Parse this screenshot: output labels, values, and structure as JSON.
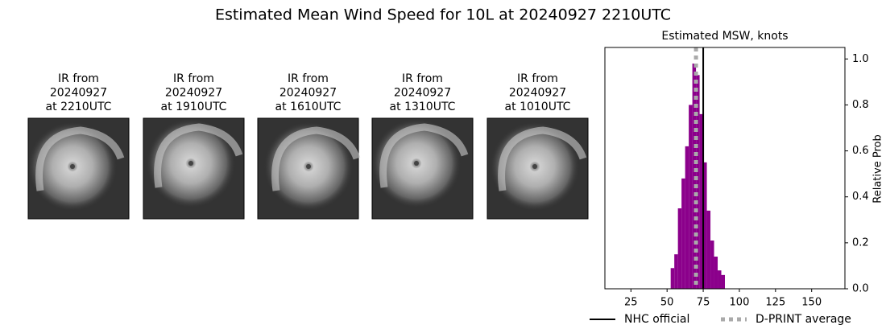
{
  "title": "Estimated Mean Wind Speed for 10L at 20240927 2210UTC",
  "panels": [
    {
      "title_lines": [
        "IR from",
        "20240927",
        "at 2210UTC"
      ]
    },
    {
      "title_lines": [
        "IR from",
        "20240927",
        "at 1910UTC"
      ]
    },
    {
      "title_lines": [
        "IR from",
        "20240927",
        "at 1610UTC"
      ]
    },
    {
      "title_lines": [
        "IR from",
        "20240927",
        "at 1310UTC"
      ]
    },
    {
      "title_lines": [
        "IR from",
        "20240927",
        "at 1010UTC"
      ]
    }
  ],
  "chart_data": {
    "type": "histogram",
    "title": "Estimated MSW, knots",
    "y_label": "Relative Prob",
    "bins": [
      52.5,
      55,
      57.5,
      60,
      62.5,
      65,
      67.5,
      70,
      72.5,
      75,
      77.5,
      80,
      82.5,
      85,
      87.5,
      90
    ],
    "values": [
      0.09,
      0.15,
      0.35,
      0.48,
      0.62,
      0.8,
      0.98,
      0.93,
      0.76,
      0.55,
      0.34,
      0.21,
      0.14,
      0.08,
      0.06
    ],
    "color": "#8b008b",
    "xlim": [
      7,
      173
    ],
    "ylim": [
      0,
      1.05
    ],
    "xticks": [
      25,
      50,
      75,
      100,
      125,
      150
    ],
    "yticks": [
      {
        "value": 0,
        "label": "0.0"
      },
      0.2,
      0.4,
      0.6,
      0.8,
      {
        "value": 1,
        "label": "1.0"
      }
    ],
    "lines": [
      {
        "name": "NHC official",
        "value": 75,
        "color": "#000000",
        "dash": "solid"
      },
      {
        "name": "D-PRINT average",
        "value": 70,
        "color": "#aaaaaa",
        "dash": "dotted"
      }
    ],
    "legend": "bottom"
  }
}
